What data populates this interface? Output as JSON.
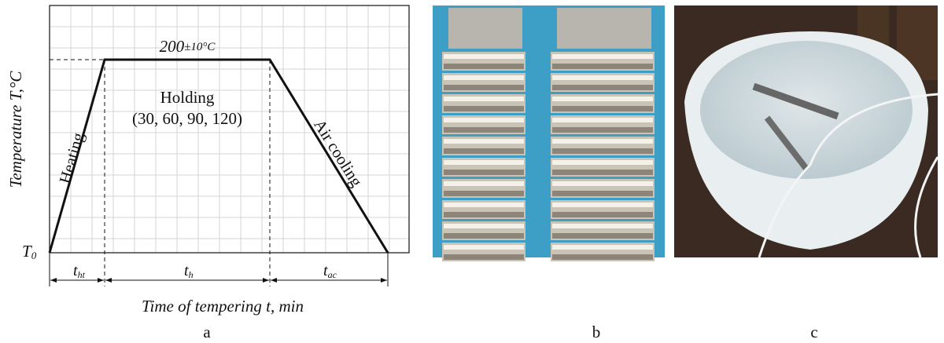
{
  "panel_a": {
    "peak_temperature": "200",
    "tolerance": "±10°C",
    "holding": "Holding",
    "holding_times": "(30, 60, 90, 120)",
    "heating": "Heating",
    "air_cooling": "Air cooling",
    "y_axis_label": "Temperature T,°C",
    "t0_symbol": "T",
    "t0_subscript": "0",
    "t_ht_symbol": "t",
    "t_ht_subscript": "ht",
    "t_h_symbol": "t",
    "t_h_subscript": "h",
    "t_ac_symbol": "t",
    "t_ac_subscript": "ac",
    "x_axis_label": "Time of tempering t, min"
  },
  "labels": [
    "a",
    "b",
    "c"
  ]
}
